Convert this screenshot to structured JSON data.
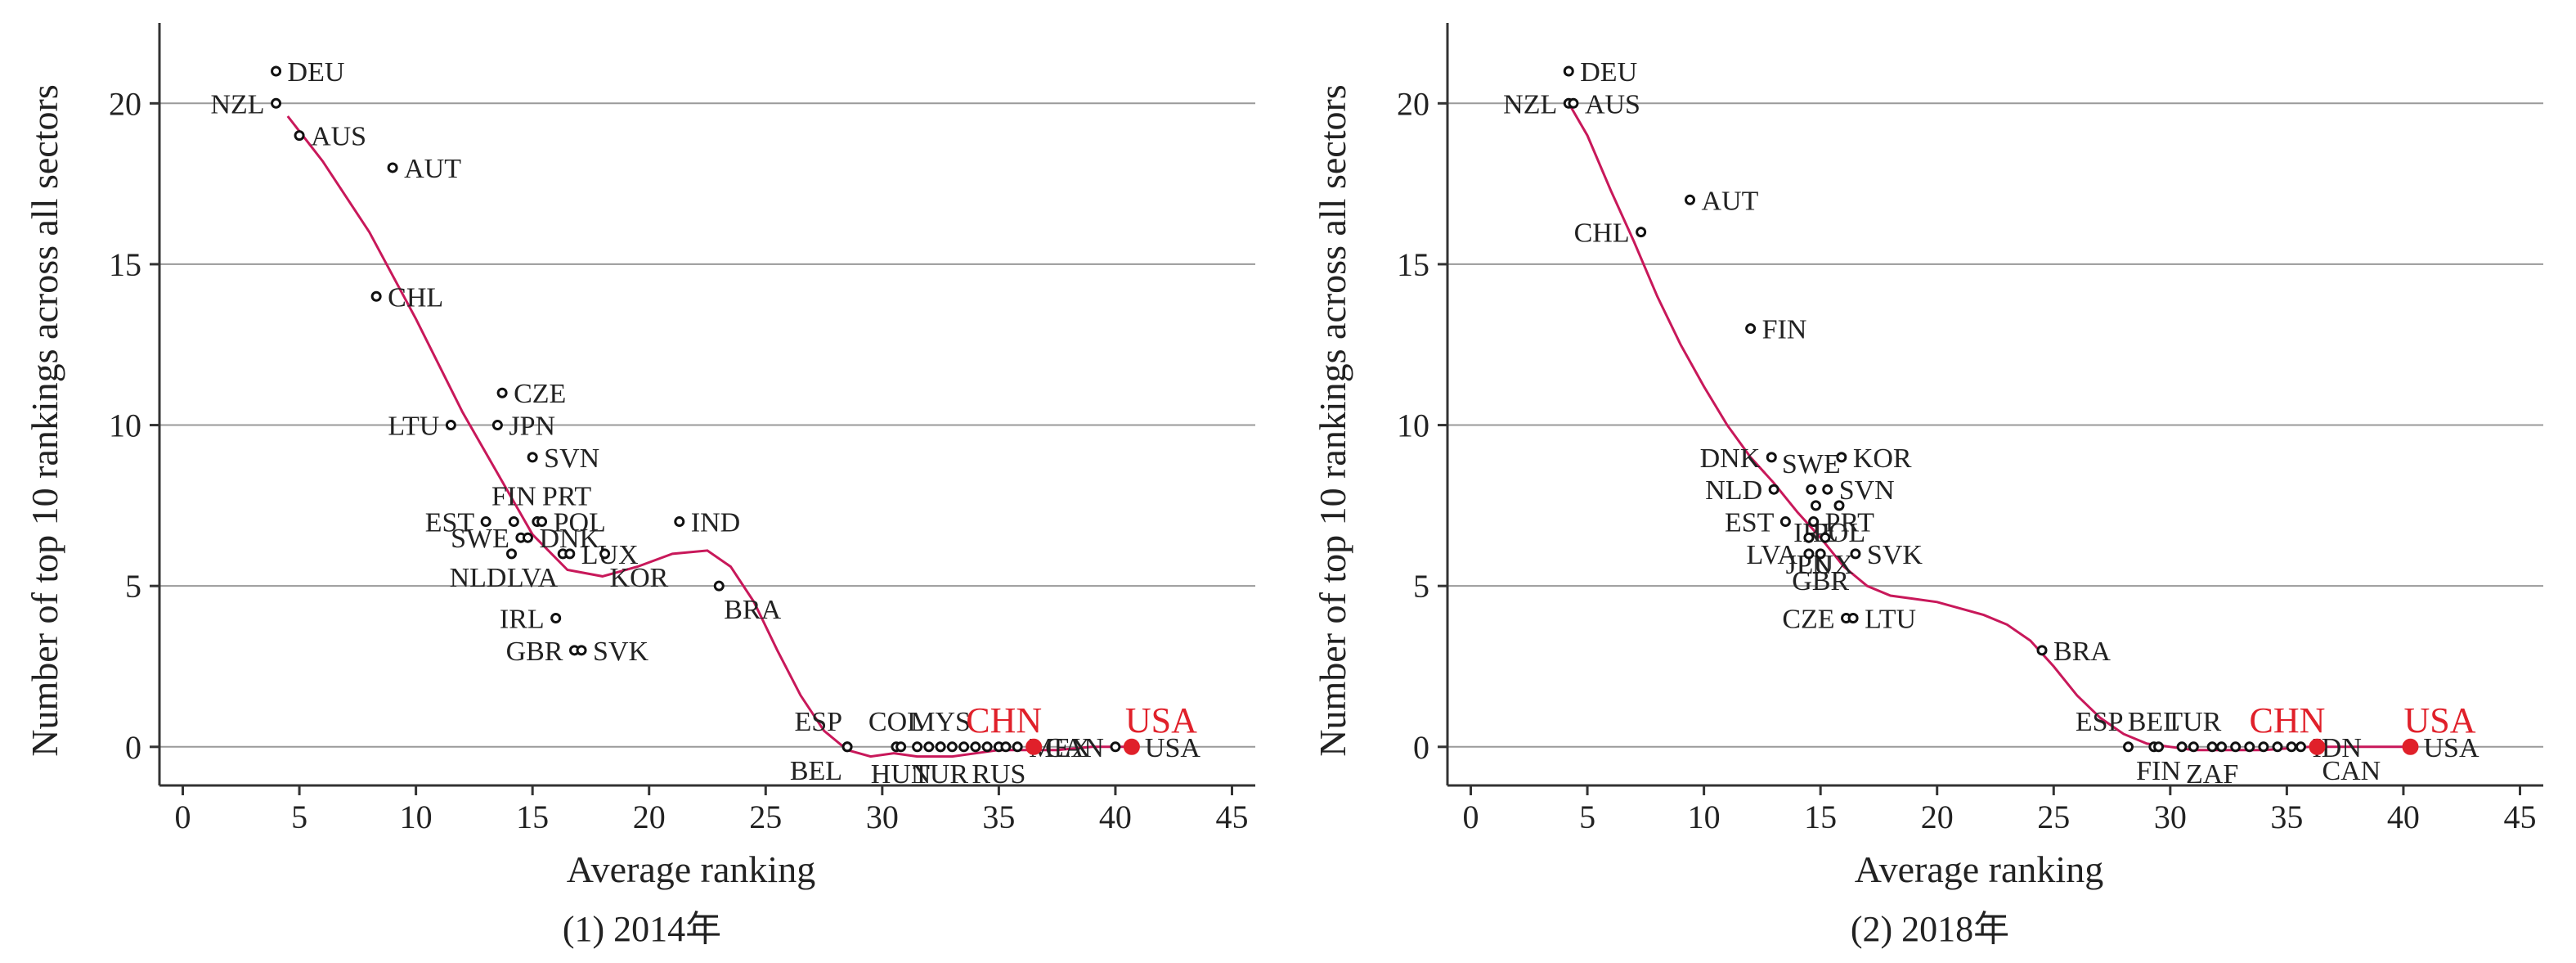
{
  "chart_data": [
    {
      "type": "scatter",
      "caption": "(1) 2014年",
      "xlabel": "Average ranking",
      "ylabel": "Number of top 10 rankings across all sectors",
      "xlim": [
        -1,
        46
      ],
      "ylim": [
        -1.2,
        22.5
      ],
      "xticks": [
        0,
        5,
        10,
        15,
        20,
        25,
        30,
        35,
        40,
        45
      ],
      "yticks": [
        0,
        5,
        10,
        15,
        20
      ],
      "grid": "horizontal",
      "highlight_color": "#e0202a",
      "curve_color": "#c8185a",
      "points": [
        {
          "label": "DEU",
          "x": 4,
          "y": 21,
          "side": "right"
        },
        {
          "label": "NZL",
          "x": 4,
          "y": 20,
          "side": "left"
        },
        {
          "label": "AUS",
          "x": 5,
          "y": 19,
          "side": "right"
        },
        {
          "label": "AUT",
          "x": 9,
          "y": 18,
          "side": "right"
        },
        {
          "label": "CHL",
          "x": 8.3,
          "y": 14,
          "side": "right"
        },
        {
          "label": "CZE",
          "x": 13.7,
          "y": 11,
          "side": "right"
        },
        {
          "label": "LTU",
          "x": 11.5,
          "y": 10,
          "side": "left"
        },
        {
          "label": "JPN",
          "x": 13.5,
          "y": 10,
          "side": "right"
        },
        {
          "label": "SVN",
          "x": 15,
          "y": 9,
          "side": "right"
        },
        {
          "label": "EST",
          "x": 13,
          "y": 7,
          "side": "left"
        },
        {
          "label": "FIN",
          "x": 14.2,
          "y": 7,
          "side": "above"
        },
        {
          "label": "PRT",
          "x": 15.2,
          "y": 7,
          "side": "aboveright"
        },
        {
          "label": "POL",
          "x": 15.4,
          "y": 7,
          "side": "right"
        },
        {
          "label": "IND",
          "x": 21.3,
          "y": 7,
          "side": "right"
        },
        {
          "label": "SWE",
          "x": 14.5,
          "y": 6.5,
          "side": "left"
        },
        {
          "label": "DNK",
          "x": 14.8,
          "y": 6.5,
          "side": "right"
        },
        {
          "label": "NLD",
          "x": 14.1,
          "y": 6,
          "side": "belowleft"
        },
        {
          "label": "LVA",
          "x": 16.3,
          "y": 6,
          "side": "belowleft"
        },
        {
          "label": "LUX",
          "x": 16.6,
          "y": 6,
          "side": "right"
        },
        {
          "label": "KOR",
          "x": 18.1,
          "y": 6,
          "side": "belowright"
        },
        {
          "label": "BRA",
          "x": 23,
          "y": 5,
          "side": "belowright"
        },
        {
          "label": "IRL",
          "x": 16,
          "y": 4,
          "side": "left"
        },
        {
          "label": "GBR",
          "x": 16.8,
          "y": 3,
          "side": "left"
        },
        {
          "label": "SVK",
          "x": 17.1,
          "y": 3,
          "side": "right"
        },
        {
          "label": "ESP",
          "x": 28.5,
          "y": 0,
          "side": "aboveleft"
        },
        {
          "label": "BEL",
          "x": 28.5,
          "y": 0,
          "side": "belowleft"
        },
        {
          "label": "COL",
          "x": 30.6,
          "y": 0,
          "side": "above"
        },
        {
          "label": "HUN",
          "x": 30.8,
          "y": 0,
          "side": "below"
        },
        {
          "label": "MYS",
          "x": 32.5,
          "y": 0,
          "side": "above"
        },
        {
          "label": "TUR",
          "x": 32.5,
          "y": 0,
          "side": "below"
        },
        {
          "label": "RUS",
          "x": 35,
          "y": 0,
          "side": "below"
        },
        {
          "label": "",
          "x": 31.5,
          "y": 0
        },
        {
          "label": "",
          "x": 32,
          "y": 0
        },
        {
          "label": "",
          "x": 33,
          "y": 0
        },
        {
          "label": "",
          "x": 33.5,
          "y": 0
        },
        {
          "label": "",
          "x": 34,
          "y": 0
        },
        {
          "label": "",
          "x": 34.5,
          "y": 0
        },
        {
          "label": "",
          "x": 35.3,
          "y": 0
        },
        {
          "label": "MEX",
          "x": 35.8,
          "y": 0,
          "side": "right"
        },
        {
          "label": "CAN",
          "x": 40,
          "y": 0,
          "side": "left"
        },
        {
          "label": "CHN",
          "x": 36.5,
          "y": 0,
          "highlight": true,
          "side": "aboveleft"
        },
        {
          "label": "USA",
          "x": 40.7,
          "y": 0,
          "highlight": true,
          "side": "aboveleft",
          "sub": "USA"
        }
      ],
      "curve": [
        [
          4.5,
          19.6
        ],
        [
          6,
          18.2
        ],
        [
          8,
          16
        ],
        [
          10,
          13.3
        ],
        [
          12,
          10.4
        ],
        [
          13.5,
          8.5
        ],
        [
          15,
          6.6
        ],
        [
          16.5,
          5.5
        ],
        [
          18,
          5.3
        ],
        [
          19.5,
          5.6
        ],
        [
          21,
          6
        ],
        [
          22.5,
          6.1
        ],
        [
          23.5,
          5.6
        ],
        [
          24.5,
          4.5
        ],
        [
          25.5,
          3
        ],
        [
          26.5,
          1.6
        ],
        [
          27.5,
          0.5
        ],
        [
          28.5,
          -0.1
        ],
        [
          29.5,
          -0.3
        ],
        [
          30.5,
          -0.2
        ],
        [
          31.5,
          -0.3
        ],
        [
          33,
          -0.3
        ],
        [
          34,
          -0.2
        ],
        [
          35,
          -0.1
        ],
        [
          36,
          -0.1
        ],
        [
          37.5,
          -0.1
        ],
        [
          39,
          0
        ],
        [
          40.5,
          0
        ]
      ]
    },
    {
      "type": "scatter",
      "caption": "(2) 2018年",
      "xlabel": "Average ranking",
      "ylabel": "Number of top 10 rankings across all sectors",
      "xlim": [
        -1,
        46
      ],
      "ylim": [
        -1.2,
        22.5
      ],
      "xticks": [
        0,
        5,
        10,
        15,
        20,
        25,
        30,
        35,
        40,
        45
      ],
      "yticks": [
        0,
        5,
        10,
        15,
        20
      ],
      "grid": "horizontal",
      "highlight_color": "#e0202a",
      "curve_color": "#c8185a",
      "points": [
        {
          "label": "DEU",
          "x": 4.2,
          "y": 21,
          "side": "right"
        },
        {
          "label": "NZL",
          "x": 4.2,
          "y": 20,
          "side": "left"
        },
        {
          "label": "AUS",
          "x": 4.4,
          "y": 20,
          "side": "right"
        },
        {
          "label": "AUT",
          "x": 9.4,
          "y": 17,
          "side": "right"
        },
        {
          "label": "CHL",
          "x": 7.3,
          "y": 16,
          "side": "left"
        },
        {
          "label": "FIN",
          "x": 12,
          "y": 13,
          "side": "right"
        },
        {
          "label": "DNK",
          "x": 12.9,
          "y": 9,
          "side": "left"
        },
        {
          "label": "KOR",
          "x": 15.9,
          "y": 9,
          "side": "right"
        },
        {
          "label": "SWE",
          "x": 14.6,
          "y": 8,
          "side": "above"
        },
        {
          "label": "NLD",
          "x": 13,
          "y": 8,
          "side": "left"
        },
        {
          "label": "SVN",
          "x": 15.3,
          "y": 8,
          "side": "right"
        },
        {
          "label": "IRL",
          "x": 14.8,
          "y": 7.5,
          "side": "below"
        },
        {
          "label": "POL",
          "x": 15.8,
          "y": 7.5,
          "side": "below"
        },
        {
          "label": "EST",
          "x": 13.5,
          "y": 7,
          "side": "left"
        },
        {
          "label": "PRT",
          "x": 14.7,
          "y": 7,
          "side": "right"
        },
        {
          "label": "JPN",
          "x": 14.5,
          "y": 6.5,
          "side": "below"
        },
        {
          "label": "LUX",
          "x": 15.2,
          "y": 6.5,
          "side": "below"
        },
        {
          "label": "LVA",
          "x": 14.5,
          "y": 6,
          "side": "left"
        },
        {
          "label": "GBR",
          "x": 15,
          "y": 6,
          "side": "below"
        },
        {
          "label": "SVK",
          "x": 16.5,
          "y": 6,
          "side": "right"
        },
        {
          "label": "CZE",
          "x": 16.1,
          "y": 4,
          "side": "left"
        },
        {
          "label": "LTU",
          "x": 16.4,
          "y": 4,
          "side": "right"
        },
        {
          "label": "BRA",
          "x": 24.5,
          "y": 3,
          "side": "right"
        },
        {
          "label": "ESP",
          "x": 28.2,
          "y": 0,
          "side": "aboveleft"
        },
        {
          "label": "BEL",
          "x": 29.3,
          "y": 0,
          "side": "above"
        },
        {
          "label": "TUR",
          "x": 31,
          "y": 0,
          "side": "above"
        },
        {
          "label": "FIN",
          "x": 29.5,
          "y": 0,
          "side": "belowmid"
        },
        {
          "label": "ZAF",
          "x": 31.8,
          "y": 0,
          "side": "below"
        },
        {
          "label": "",
          "x": 30.5,
          "y": 0
        },
        {
          "label": "",
          "x": 32.2,
          "y": 0
        },
        {
          "label": "",
          "x": 32.8,
          "y": 0
        },
        {
          "label": "",
          "x": 33.4,
          "y": 0
        },
        {
          "label": "",
          "x": 34,
          "y": 0
        },
        {
          "label": "",
          "x": 34.6,
          "y": 0
        },
        {
          "label": "",
          "x": 35.2,
          "y": 0
        },
        {
          "label": "IDN",
          "x": 35.6,
          "y": 0,
          "side": "right"
        },
        {
          "label": "CAN",
          "x": 36.3,
          "y": 0,
          "side": "belowright"
        },
        {
          "label": "CHN",
          "x": 36.3,
          "y": 0,
          "highlight": true,
          "side": "aboveleft"
        },
        {
          "label": "USA",
          "x": 40.3,
          "y": 0,
          "highlight": true,
          "side": "aboveleft",
          "sub": "USA"
        }
      ],
      "curve": [
        [
          4.2,
          20
        ],
        [
          5,
          19
        ],
        [
          6,
          17.3
        ],
        [
          7,
          15.7
        ],
        [
          8,
          14
        ],
        [
          9,
          12.5
        ],
        [
          10,
          11.2
        ],
        [
          11,
          10
        ],
        [
          12,
          9
        ],
        [
          13,
          8.2
        ],
        [
          14,
          7.3
        ],
        [
          15,
          6.5
        ],
        [
          16,
          5.6
        ],
        [
          17,
          5
        ],
        [
          18,
          4.7
        ],
        [
          19,
          4.6
        ],
        [
          20,
          4.5
        ],
        [
          21,
          4.3
        ],
        [
          22,
          4.1
        ],
        [
          23,
          3.8
        ],
        [
          24,
          3.3
        ],
        [
          25,
          2.5
        ],
        [
          26,
          1.6
        ],
        [
          27,
          0.9
        ],
        [
          28,
          0.4
        ],
        [
          29,
          0.1
        ],
        [
          30,
          0
        ],
        [
          31,
          -0.1
        ],
        [
          32,
          -0.1
        ],
        [
          33,
          -0.1
        ],
        [
          34,
          -0.1
        ],
        [
          35,
          -0.05
        ],
        [
          36,
          0
        ],
        [
          38,
          0
        ],
        [
          40,
          0
        ]
      ]
    }
  ]
}
